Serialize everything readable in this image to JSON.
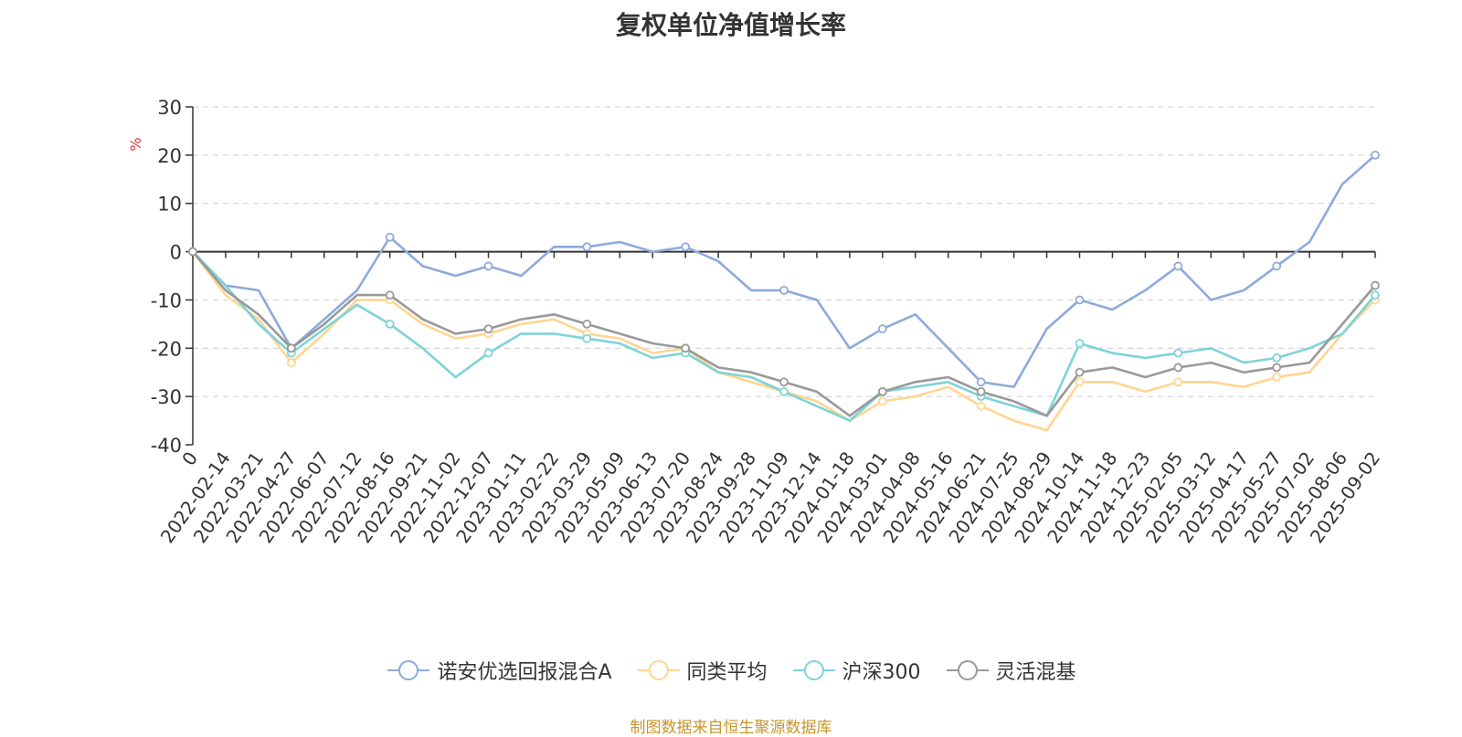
{
  "chart_data": {
    "type": "line",
    "title": "复权单位净值增长率",
    "ylabel": "%",
    "ylim": [
      -40,
      30
    ],
    "yticks": [
      -40,
      -30,
      -20,
      -10,
      0,
      10,
      20,
      30
    ],
    "xtick_labels": [
      "0",
      "2022-02-14",
      "2022-03-21",
      "2022-04-27",
      "2022-06-07",
      "2022-07-12",
      "2022-08-16",
      "2022-09-21",
      "2022-11-02",
      "2022-12-07",
      "2023-01-11",
      "2023-02-22",
      "2023-03-29",
      "2023-05-09",
      "2023-06-13",
      "2023-07-20",
      "2023-08-24",
      "2023-09-28",
      "2023-11-09",
      "2023-12-14",
      "2024-01-18",
      "2024-03-01",
      "2024-04-08",
      "2024-05-16",
      "2024-06-21",
      "2024-07-25",
      "2024-08-29",
      "2024-10-14",
      "2024-11-18",
      "2024-12-23",
      "2025-02-05",
      "2025-03-12",
      "2025-04-17",
      "2025-05-27",
      "2025-07-02",
      "2025-08-06",
      "2025-09-02"
    ],
    "grid": "horizontal-dashed",
    "legend_position": "bottom",
    "series": [
      {
        "name": "诺安优选回报混合A",
        "color": "#8eaadb",
        "values": [
          0,
          -7,
          -8,
          -20,
          -14,
          -8,
          3,
          -3,
          -5,
          -3,
          -5,
          1,
          1,
          2,
          0,
          1,
          -2,
          -8,
          -8,
          -10,
          -20,
          -16,
          -13,
          -20,
          -27,
          -28,
          -16,
          -10,
          -12,
          -8,
          -3,
          -10,
          -8,
          -3,
          2,
          14,
          20
        ]
      },
      {
        "name": "同类平均",
        "color": "#ffd591",
        "values": [
          0,
          -9,
          -14,
          -23,
          -17,
          -10,
          -10,
          -15,
          -18,
          -17,
          -15,
          -14,
          -17,
          -18,
          -21,
          -20,
          -25,
          -27,
          -29,
          -31,
          -35,
          -31,
          -30,
          -28,
          -32,
          -35,
          -37,
          -27,
          -27,
          -29,
          -27,
          -27,
          -28,
          -26,
          -25,
          -17,
          -10
        ]
      },
      {
        "name": "沪深300",
        "color": "#7dd3d8",
        "values": [
          0,
          -7,
          -15,
          -21,
          -16,
          -11,
          -15,
          -20,
          -26,
          -21,
          -17,
          -17,
          -18,
          -19,
          -22,
          -21,
          -25,
          -26,
          -29,
          -32,
          -35,
          -29,
          -28,
          -27,
          -30,
          -32,
          -34,
          -19,
          -21,
          -22,
          -21,
          -20,
          -23,
          -22,
          -20,
          -17,
          -9
        ]
      },
      {
        "name": "灵活混基",
        "color": "#999999",
        "values": [
          0,
          -8,
          -13,
          -20,
          -15,
          -9,
          -9,
          -14,
          -17,
          -16,
          -14,
          -13,
          -15,
          -17,
          -19,
          -20,
          -24,
          -25,
          -27,
          -29,
          -34,
          -29,
          -27,
          -26,
          -29,
          -31,
          -34,
          -25,
          -24,
          -26,
          -24,
          -23,
          -25,
          -24,
          -23,
          -15,
          -7
        ]
      }
    ]
  },
  "source_note": "制图数据来自恒生聚源数据库"
}
